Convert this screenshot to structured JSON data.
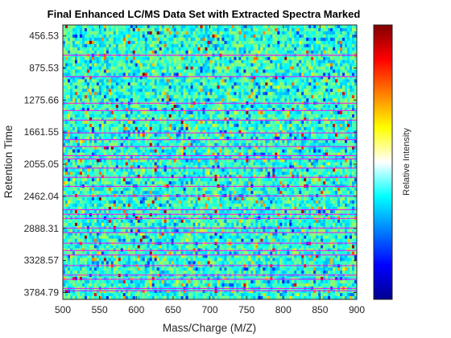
{
  "chart_data": {
    "type": "heatmap",
    "title": "Final Enhanced LC/MS Data Set with Extracted Spectra Marked",
    "xlabel": "Mass/Charge (M/Z)",
    "ylabel": "Retention Time",
    "colorbar_label": "Relative Intensity",
    "colormap": "jet",
    "xlim": [
      500,
      900
    ],
    "x_ticks": [
      500,
      550,
      600,
      650,
      700,
      750,
      800,
      850,
      900
    ],
    "y_ticks": [
      "456.53",
      "875.53",
      "1275.66",
      "1661.55",
      "2055.05",
      "2462.04",
      "2888.31",
      "3328.57",
      "3784.79"
    ],
    "y_direction": "reverse",
    "marker_line_color": "#ff00ff",
    "marked_spectra_rows": [
      6.6,
      11.3,
      17.1,
      18.7,
      20.8,
      23.6,
      25.1,
      26.6,
      28.6,
      29.3,
      31.3,
      33.3,
      35.3,
      37.4,
      40.4,
      41.4,
      42.3,
      44.4,
      45.4,
      47.7,
      49.3,
      50.3,
      52.6,
      54.7,
      55.6,
      57.6,
      58.1
    ]
  }
}
